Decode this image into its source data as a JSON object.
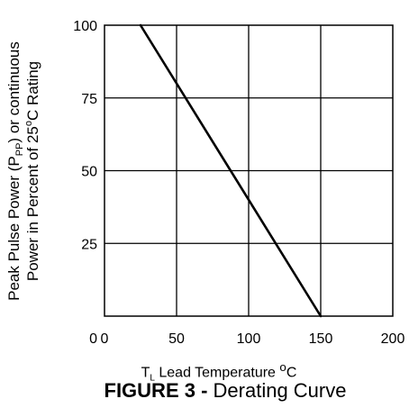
{
  "chart_data": {
    "type": "line",
    "x_ticks": [
      0,
      50,
      100,
      150,
      200
    ],
    "y_ticks": [
      0,
      25,
      50,
      75,
      100
    ],
    "xlim": [
      0,
      200
    ],
    "ylim": [
      0,
      100
    ],
    "grid": true,
    "series": [
      {
        "x": [
          25,
          150
        ],
        "y": [
          100,
          0
        ],
        "color": "#000000"
      }
    ],
    "ylabel": {
      "line1_prefix": "Peak Pulse Power (P",
      "line1_sub": "PP",
      "line1_suffix": ") or continuous",
      "line2_prefix": "Power in Percent of 25",
      "line2_sup": "o",
      "line2_suffix": "C Rating"
    },
    "xlabel": {
      "symbol": "T",
      "symbol_sub": "L",
      "prefix": " Lead Temperature ",
      "sup": "o",
      "suffix": "C"
    }
  },
  "caption": {
    "lead": "FIGURE 3 -",
    "text": " Derating Curve"
  }
}
